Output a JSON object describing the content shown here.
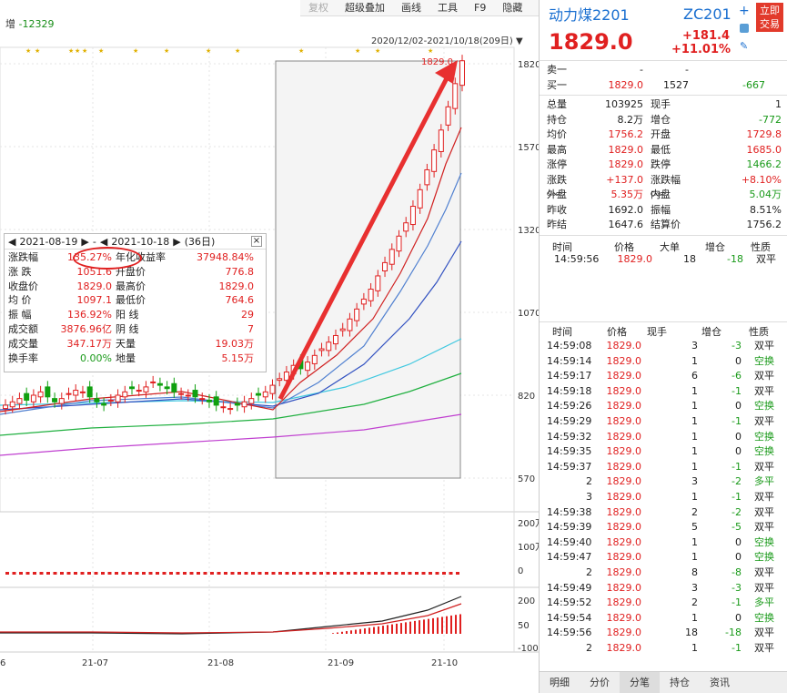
{
  "toolbar": [
    "复权",
    "超级叠加",
    "画线",
    "工具",
    "F9",
    "隐藏"
  ],
  "volume_label": {
    "prefix": "增",
    "value": "-12329"
  },
  "range_label": "2020/12/02-2021/10/18(209日)",
  "price_axis": [
    "1820",
    "1570",
    "1320",
    "1070",
    "820",
    "570"
  ],
  "volume_axis": [
    "200万",
    "100万",
    "0"
  ],
  "macd_axis": [
    "200",
    "50",
    "-100"
  ],
  "date_axis": [
    "6",
    "21-07",
    "21-08",
    "21-09",
    "21-10"
  ],
  "peak_label": "1829.0",
  "stats": {
    "start_date": "2021-08-19",
    "end_date": "2021-10-18",
    "days": "(36日)",
    "sep": "-",
    "rows": [
      {
        "k1": "涨跌幅",
        "v1": "135.27%",
        "k2": "年化收益率",
        "v2": "37948.84%"
      },
      {
        "k1": "涨  跌",
        "v1": "1051.6",
        "k2": "开盘价",
        "v2": "776.8"
      },
      {
        "k1": "收盘价",
        "v1": "1829.0",
        "k2": "最高价",
        "v2": "1829.0"
      },
      {
        "k1": "均  价",
        "v1": "1097.1",
        "k2": "最低价",
        "v2": "764.6"
      },
      {
        "k1": "振  幅",
        "v1": "136.92%",
        "k2": "阳  线",
        "v2": "29"
      },
      {
        "k1": "成交额",
        "v1": "3876.96亿",
        "k2": "阴  线",
        "v2": "7"
      },
      {
        "k1": "成交量",
        "v1": "347.17万",
        "k2": "天量",
        "v2": "19.03万"
      },
      {
        "k1": "换手率",
        "v1": "0.00%",
        "k2": "地量",
        "v2": "5.15万"
      }
    ]
  },
  "quote": {
    "name": "动力煤2201",
    "code": "ZC201",
    "trade_btn": [
      "立即",
      "交易"
    ],
    "price": "1829.0",
    "change": "+181.4",
    "change_pct": "+11.01%",
    "sell1": {
      "label": "卖一",
      "price": "-",
      "vol": "-"
    },
    "buy1": {
      "label": "买一",
      "price": "1829.0",
      "vol": "1527",
      "chg": "-667"
    },
    "rows": [
      {
        "k1": "总量",
        "v1": "103925",
        "k2": "现手",
        "v2": "1"
      },
      {
        "k1": "持仓",
        "v1": "8.2万",
        "k2": "增仓",
        "v2": "-772"
      },
      {
        "k1": "均价",
        "v1": "1756.2",
        "k2": "开盘",
        "v2": "1729.8"
      },
      {
        "k1": "最高",
        "v1": "1829.0",
        "k2": "最低",
        "v2": "1685.0"
      },
      {
        "k1": "涨停",
        "v1": "1829.0",
        "k2": "跌停",
        "v2": "1466.2"
      },
      {
        "k1": "涨跌",
        "v1": "+137.0",
        "k2": "涨跌幅",
        "v2": "+8.10%"
      },
      {
        "k1": "外盘",
        "v1": "5.35万",
        "k2": "内盘",
        "v2": "5.04万"
      },
      {
        "k1": "昨收",
        "v1": "1692.0",
        "k2": "振幅",
        "v2": "8.51%"
      },
      {
        "k1": "昨结",
        "v1": "1647.6",
        "k2": "结算价",
        "v2": "1756.2"
      }
    ],
    "sup_close": "Close",
    "big_head": [
      "时间",
      "价格",
      "大单",
      "增仓",
      "性质"
    ],
    "big_row": {
      "time": "14:59:56",
      "price": "1829.0",
      "vol": "18",
      "chg": "-18",
      "type": "双平"
    },
    "tick_head": [
      "时间",
      "价格",
      "现手",
      "增仓",
      "性质"
    ],
    "ticks": [
      [
        "14:59:08",
        "1829.0",
        "3",
        "-3",
        "双平"
      ],
      [
        "14:59:14",
        "1829.0",
        "1",
        "0",
        "空换"
      ],
      [
        "14:59:17",
        "1829.0",
        "6",
        "-6",
        "双平"
      ],
      [
        "14:59:18",
        "1829.0",
        "1",
        "-1",
        "双平"
      ],
      [
        "14:59:26",
        "1829.0",
        "1",
        "0",
        "空换"
      ],
      [
        "14:59:29",
        "1829.0",
        "1",
        "-1",
        "双平"
      ],
      [
        "14:59:32",
        "1829.0",
        "1",
        "0",
        "空换"
      ],
      [
        "14:59:35",
        "1829.0",
        "1",
        "0",
        "空换"
      ],
      [
        "14:59:37",
        "1829.0",
        "1",
        "-1",
        "双平"
      ],
      [
        "2",
        "1829.0",
        "3",
        "-2",
        "多平"
      ],
      [
        "3",
        "1829.0",
        "1",
        "-1",
        "双平"
      ],
      [
        "14:59:38",
        "1829.0",
        "2",
        "-2",
        "双平"
      ],
      [
        "14:59:39",
        "1829.0",
        "5",
        "-5",
        "双平"
      ],
      [
        "14:59:40",
        "1829.0",
        "1",
        "0",
        "空换"
      ],
      [
        "14:59:47",
        "1829.0",
        "1",
        "0",
        "空换"
      ],
      [
        "2",
        "1829.0",
        "8",
        "-8",
        "双平"
      ],
      [
        "14:59:49",
        "1829.0",
        "3",
        "-3",
        "双平"
      ],
      [
        "14:59:52",
        "1829.0",
        "2",
        "-1",
        "多平"
      ],
      [
        "14:59:54",
        "1829.0",
        "1",
        "0",
        "空换"
      ],
      [
        "14:59:56",
        "1829.0",
        "18",
        "-18",
        "双平"
      ],
      [
        "2",
        "1829.0",
        "1",
        "-1",
        "双平"
      ]
    ],
    "tabs": [
      "明细",
      "分价",
      "分笔",
      "持仓",
      "资讯"
    ]
  },
  "chart_data": {
    "type": "candlestick",
    "ylim": [
      570,
      1820
    ],
    "closes": [
      790,
      800,
      810,
      805,
      820,
      830,
      815,
      800,
      810,
      825,
      835,
      830,
      815,
      800,
      790,
      805,
      820,
      830,
      840,
      835,
      845,
      860,
      850,
      840,
      830,
      825,
      820,
      815,
      810,
      800,
      790,
      785,
      780,
      790,
      800,
      810,
      820,
      830,
      850,
      870,
      890,
      910,
      900,
      920,
      940,
      960,
      980,
      1000,
      1020,
      1050,
      1080,
      1110,
      1140,
      1180,
      1220,
      1260,
      1300,
      1340,
      1390,
      1440,
      1500,
      1560,
      1620,
      1690,
      1760,
      1829
    ]
  }
}
